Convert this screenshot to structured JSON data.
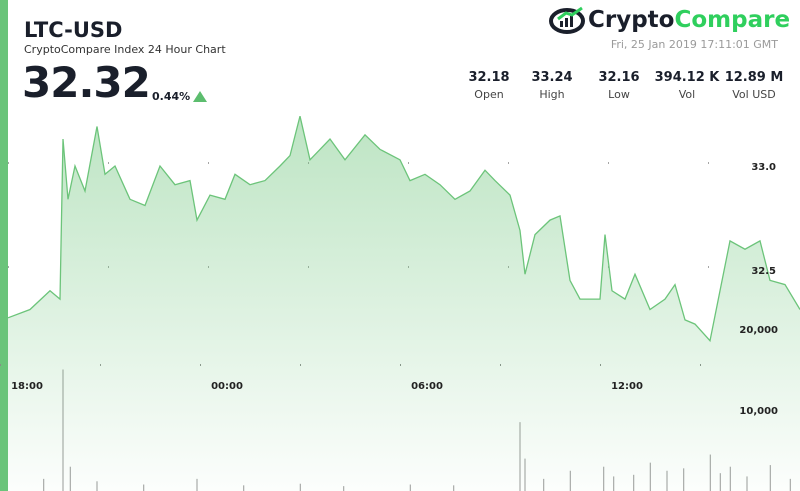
{
  "header": {
    "pair": "LTC-USD",
    "subtitle": "CryptoCompare Index 24 Hour Chart",
    "price": "32.32",
    "change": "0.44%",
    "date": "Fri, 25 Jan 2019 17:11:01 GMT"
  },
  "logo": {
    "part1": "Crypto",
    "part2": "Compare"
  },
  "stats": [
    {
      "value": "32.18",
      "label": "Open"
    },
    {
      "value": "33.24",
      "label": "High"
    },
    {
      "value": "32.16",
      "label": "Low"
    },
    {
      "value": "394.12 K",
      "label": "Vol"
    },
    {
      "value": "12.89 M",
      "label": "Vol USD"
    }
  ],
  "colors": {
    "accent": "#6ac47a",
    "line": "#6cc47a",
    "up": "#5cbd6e"
  },
  "chart_data": {
    "type": "area",
    "x_unit": "hours after 18:00",
    "x_ticks": [
      {
        "h": 0,
        "label": "18:00"
      },
      {
        "h": 6,
        "label": "00:00"
      },
      {
        "h": 12,
        "label": "06:00"
      },
      {
        "h": 18,
        "label": "12:00"
      }
    ],
    "price_ticks": [
      {
        "v": 33.0,
        "label": "33.0"
      },
      {
        "v": 32.5,
        "label": "32.5"
      }
    ],
    "volume_ticks": [
      {
        "v": 20000,
        "label": "20,000"
      },
      {
        "v": 10000,
        "label": "10,000"
      }
    ],
    "xlim": [
      -0.57,
      23.19
    ],
    "price_points": [
      [
        -0.57,
        32.27
      ],
      [
        0.09,
        32.31
      ],
      [
        0.69,
        32.4
      ],
      [
        0.99,
        32.36
      ],
      [
        1.08,
        33.13
      ],
      [
        1.23,
        32.84
      ],
      [
        1.44,
        33.0
      ],
      [
        1.74,
        32.88
      ],
      [
        2.1,
        33.19
      ],
      [
        2.34,
        32.96
      ],
      [
        2.64,
        33.0
      ],
      [
        3.09,
        32.84
      ],
      [
        3.54,
        32.81
      ],
      [
        3.99,
        33.0
      ],
      [
        4.44,
        32.91
      ],
      [
        4.89,
        32.93
      ],
      [
        5.1,
        32.74
      ],
      [
        5.49,
        32.86
      ],
      [
        5.94,
        32.84
      ],
      [
        6.24,
        32.96
      ],
      [
        6.69,
        32.91
      ],
      [
        7.14,
        32.93
      ],
      [
        7.59,
        33.0
      ],
      [
        7.89,
        33.05
      ],
      [
        8.19,
        33.24
      ],
      [
        8.49,
        33.03
      ],
      [
        8.79,
        33.08
      ],
      [
        9.09,
        33.13
      ],
      [
        9.54,
        33.03
      ],
      [
        10.14,
        33.15
      ],
      [
        10.59,
        33.08
      ],
      [
        11.19,
        33.03
      ],
      [
        11.49,
        32.93
      ],
      [
        11.94,
        32.96
      ],
      [
        12.39,
        32.91
      ],
      [
        12.84,
        32.84
      ],
      [
        13.29,
        32.88
      ],
      [
        13.74,
        32.98
      ],
      [
        14.04,
        32.93
      ],
      [
        14.49,
        32.86
      ],
      [
        14.79,
        32.69
      ],
      [
        14.94,
        32.48
      ],
      [
        15.24,
        32.67
      ],
      [
        15.69,
        32.74
      ],
      [
        15.99,
        32.76
      ],
      [
        16.29,
        32.45
      ],
      [
        16.59,
        32.36
      ],
      [
        17.19,
        32.36
      ],
      [
        17.34,
        32.67
      ],
      [
        17.55,
        32.4
      ],
      [
        17.94,
        32.36
      ],
      [
        18.24,
        32.48
      ],
      [
        18.69,
        32.31
      ],
      [
        19.14,
        32.36
      ],
      [
        19.44,
        32.43
      ],
      [
        19.74,
        32.26
      ],
      [
        20.04,
        32.24
      ],
      [
        20.49,
        32.16
      ],
      [
        20.79,
        32.4
      ],
      [
        21.09,
        32.64
      ],
      [
        21.54,
        32.6
      ],
      [
        21.99,
        32.64
      ],
      [
        22.29,
        32.45
      ],
      [
        22.74,
        32.43
      ],
      [
        23.19,
        32.31
      ]
    ],
    "volume_points": [
      [
        0.5,
        1500
      ],
      [
        1.08,
        15000
      ],
      [
        1.3,
        3000
      ],
      [
        2.1,
        1200
      ],
      [
        3.5,
        800
      ],
      [
        5.1,
        1500
      ],
      [
        6.5,
        700
      ],
      [
        8.2,
        900
      ],
      [
        9.5,
        600
      ],
      [
        11.5,
        800
      ],
      [
        12.8,
        700
      ],
      [
        14.79,
        8500
      ],
      [
        14.94,
        4000
      ],
      [
        15.5,
        1500
      ],
      [
        16.3,
        2500
      ],
      [
        17.3,
        3000
      ],
      [
        17.6,
        1800
      ],
      [
        18.2,
        2000
      ],
      [
        18.7,
        3500
      ],
      [
        19.2,
        2500
      ],
      [
        19.7,
        2800
      ],
      [
        20.5,
        4500
      ],
      [
        20.8,
        2200
      ],
      [
        21.1,
        3000
      ],
      [
        21.6,
        1800
      ],
      [
        22.3,
        3200
      ],
      [
        22.9,
        1500
      ]
    ]
  }
}
